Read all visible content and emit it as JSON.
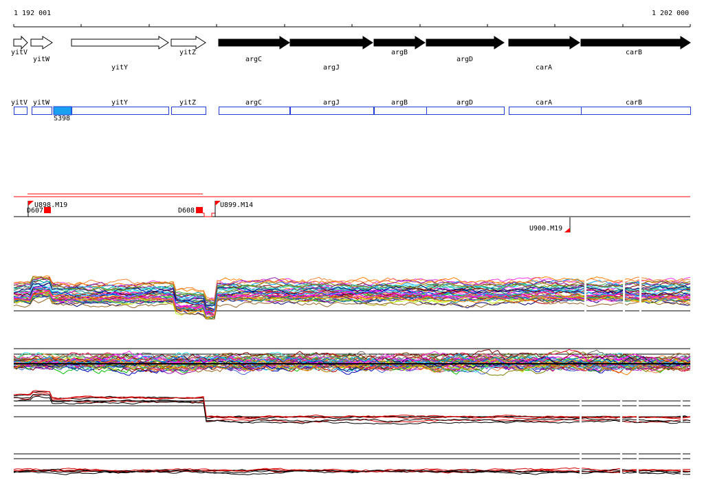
{
  "ruler": {
    "start_label": "1 192 001",
    "end_label": "1 202 000"
  },
  "genes": [
    {
      "name": "yitV",
      "filled": false
    },
    {
      "name": "yitW",
      "filled": false
    },
    {
      "name": "yitY",
      "filled": false
    },
    {
      "name": "yitZ",
      "filled": false
    },
    {
      "name": "argC",
      "filled": true
    },
    {
      "name": "argJ",
      "filled": true
    },
    {
      "name": "argB",
      "filled": true
    },
    {
      "name": "argD",
      "filled": true
    },
    {
      "name": "carA",
      "filled": true
    },
    {
      "name": "carB",
      "filled": true
    }
  ],
  "feature_boxes": [
    {
      "name": "yitV"
    },
    {
      "name": "yitW"
    },
    {
      "name": "yitY"
    },
    {
      "name": "yitZ"
    },
    {
      "name": "argC"
    },
    {
      "name": "argJ"
    },
    {
      "name": "argB"
    },
    {
      "name": "argD"
    },
    {
      "name": "carA"
    },
    {
      "name": "carB"
    }
  ],
  "highlight_feature": {
    "label": "S398"
  },
  "transcription_marks": [
    {
      "label": "U898.M19"
    },
    {
      "label": "D607"
    },
    {
      "label": "D608"
    },
    {
      "label": "U899.M14"
    },
    {
      "label": "U900.M19"
    }
  ],
  "colors": {
    "gene_arrow_outline": "#000000",
    "feature_box": "#1f3fd8",
    "highlight": "#1aa0f0",
    "mark": "#ff0000",
    "tiling_1": "#d40000",
    "tiling_2": "#000000"
  }
}
